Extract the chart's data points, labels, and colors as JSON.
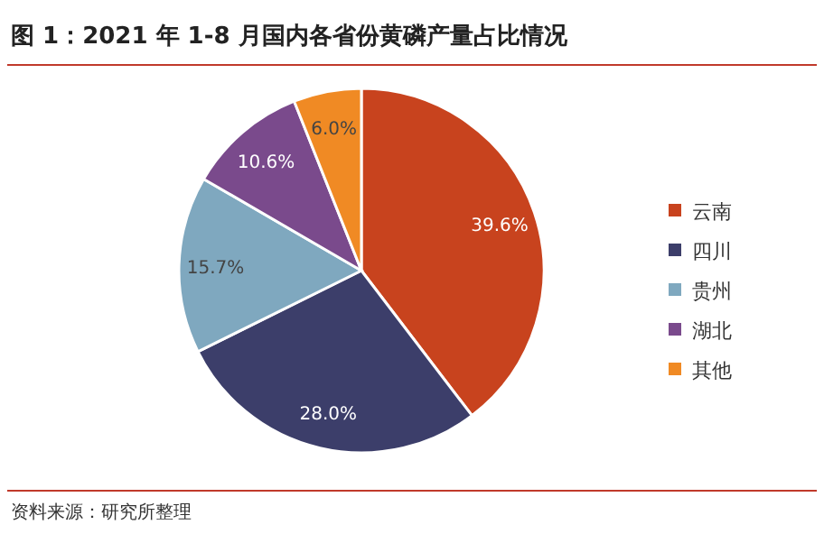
{
  "chart_data": {
    "type": "pie",
    "title": "图 1：2021 年 1-8 月国内各省份黄磷产量占比情况",
    "categories": [
      "云南",
      "四川",
      "贵州",
      "湖北",
      "其他"
    ],
    "values": [
      39.6,
      28.0,
      15.7,
      10.6,
      6.0
    ],
    "value_labels": [
      "39.6%",
      "28.0%",
      "15.7%",
      "10.6%",
      "6.0%"
    ],
    "colors": [
      "#c8431e",
      "#3c3e6a",
      "#7fa8bf",
      "#7a4a8c",
      "#f08a24"
    ],
    "legend": "right",
    "annotations": [
      "资料来源：研究所整理"
    ]
  }
}
